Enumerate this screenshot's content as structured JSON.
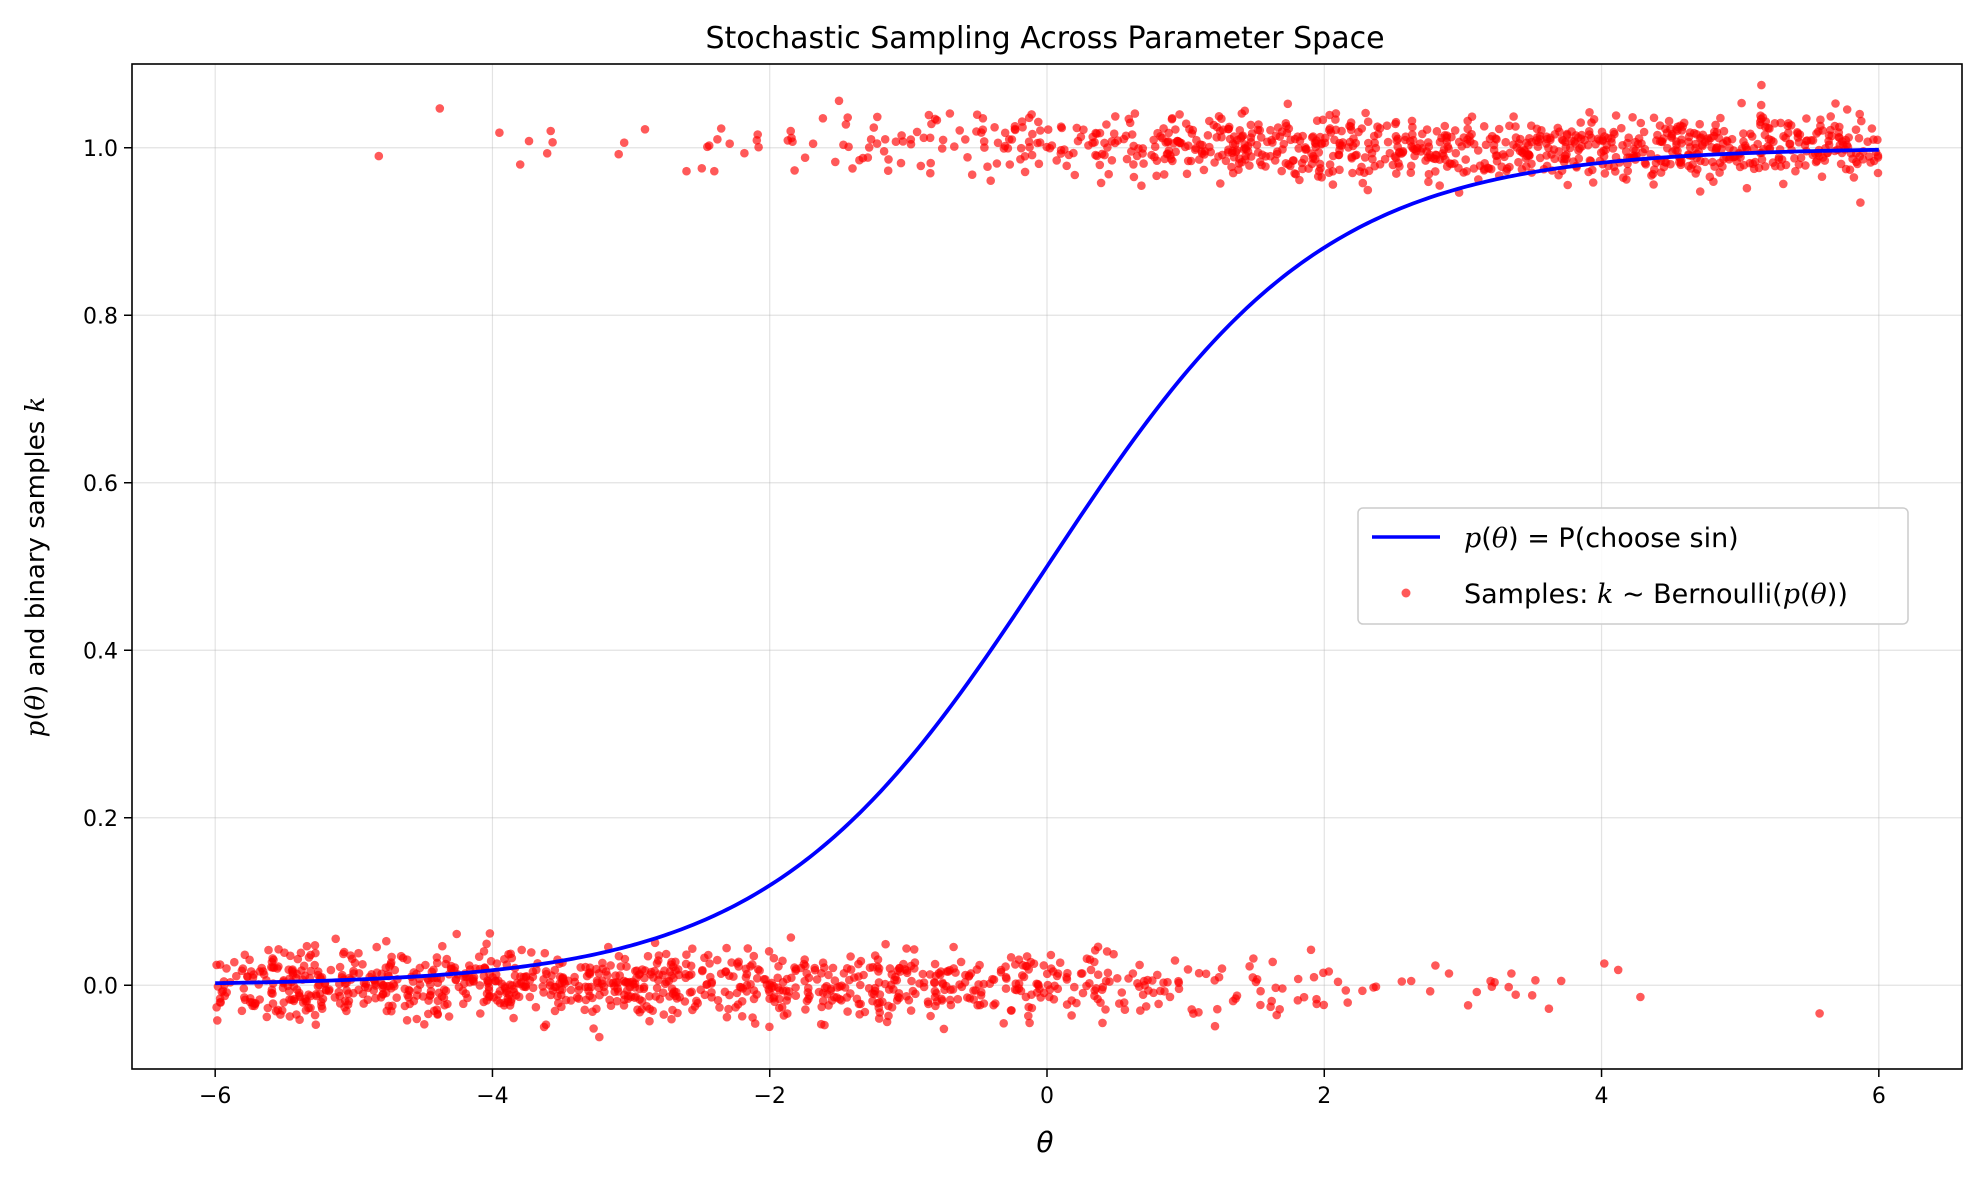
{
  "chart_data": {
    "type": "scatter",
    "title": "Stochastic Sampling Across Parameter Space",
    "xlabel": "θ",
    "ylabel": "p(θ) and binary samples k",
    "xlim": [
      -6.6,
      6.6
    ],
    "ylim": [
      -0.1,
      1.1
    ],
    "xticks": [
      -6,
      -4,
      -2,
      0,
      2,
      4,
      6
    ],
    "xtick_labels": [
      "−6",
      "−4",
      "−2",
      "0",
      "2",
      "4",
      "6"
    ],
    "yticks": [
      0.0,
      0.2,
      0.4,
      0.6,
      0.8,
      1.0
    ],
    "ytick_labels": [
      "0.0",
      "0.2",
      "0.4",
      "0.6",
      "0.8",
      "1.0"
    ],
    "grid": true,
    "legend_position": "center-right",
    "series": [
      {
        "name": "p(θ) = P(choose sin)",
        "kind": "line",
        "color": "#0000ff",
        "function": "logistic",
        "x_range": [
          -6,
          6
        ],
        "points": [
          [
            -6,
            0.002
          ],
          [
            -5,
            0.007
          ],
          [
            -4,
            0.018
          ],
          [
            -3,
            0.047
          ],
          [
            -2,
            0.119
          ],
          [
            -1.5,
            0.182
          ],
          [
            -1,
            0.269
          ],
          [
            -0.5,
            0.378
          ],
          [
            0,
            0.5
          ],
          [
            0.5,
            0.622
          ],
          [
            1,
            0.731
          ],
          [
            1.5,
            0.818
          ],
          [
            2,
            0.881
          ],
          [
            3,
            0.953
          ],
          [
            4,
            0.982
          ],
          [
            5,
            0.993
          ],
          [
            6,
            0.998
          ]
        ]
      },
      {
        "name": "Samples: k ∼ Bernoulli(p(θ))",
        "kind": "scatter",
        "color": "#ff0000",
        "opacity": 0.65,
        "values_k": [
          0,
          1
        ],
        "jitter_sd": 0.02,
        "x_range": [
          -6,
          6
        ],
        "sample_count": 2000,
        "visible_outliers_k1": [
          [
            -4.82,
            0.99
          ],
          [
            -4.38,
            1.047
          ],
          [
            -3.95,
            1.018
          ],
          [
            -3.8,
            0.98
          ],
          [
            -3.58,
            1.02
          ],
          [
            -3.05,
            1.006
          ],
          [
            -2.9,
            1.022
          ],
          [
            -2.6,
            0.972
          ],
          [
            -2.4,
            0.972
          ],
          [
            -2.35,
            1.023
          ]
        ],
        "visible_outliers_k0": [
          [
            2.9,
            0.014
          ],
          [
            3.1,
            -0.008
          ],
          [
            3.2,
            0.005
          ],
          [
            3.35,
            0.014
          ],
          [
            3.5,
            -0.012
          ],
          [
            3.62,
            -0.028
          ],
          [
            4.02,
            0.026
          ],
          [
            4.28,
            -0.014
          ]
        ]
      }
    ]
  }
}
